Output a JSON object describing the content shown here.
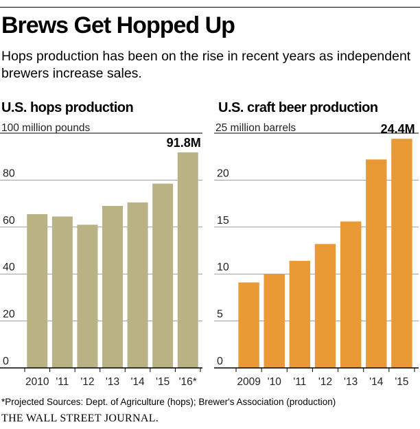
{
  "header": {
    "title": "Brews Get Hopped Up",
    "subtitle": "Hops production has been on the rise in recent years as independent brewers increase sales."
  },
  "colors": {
    "hops": "#b8b284",
    "craft": "#e99a35",
    "grid": "#9a9a9a"
  },
  "chart_data": [
    {
      "type": "bar",
      "title": "U.S. hops production",
      "unit_label": "100 million pounds",
      "categories": [
        "2010",
        "'11",
        "'12",
        "'13",
        "'14",
        "'15",
        "'16*"
      ],
      "values": [
        65.5,
        64.5,
        61.0,
        69.0,
        70.5,
        78.5,
        91.8
      ],
      "value_label": "91.8M",
      "y_ticks": [
        "0",
        "20",
        "40",
        "60",
        "80"
      ],
      "ylim": [
        0,
        100
      ],
      "grid": true
    },
    {
      "type": "bar",
      "title": "U.S. craft beer production",
      "unit_label": "25 million barrels",
      "categories": [
        "2009",
        "'10",
        "'11",
        "'12",
        "'13",
        "'14",
        "'15"
      ],
      "values": [
        9.1,
        10.0,
        11.4,
        13.2,
        15.6,
        22.2,
        24.4
      ],
      "value_label": "24.4M",
      "y_ticks": [
        "0",
        "5",
        "10",
        "15",
        "20"
      ],
      "ylim": [
        0,
        25
      ],
      "grid": true
    }
  ],
  "footer": {
    "note": "*Projected   Sources: Dept. of Agriculture (hops); Brewer's Association (production)",
    "brand": "THE WALL STREET JOURNAL."
  }
}
